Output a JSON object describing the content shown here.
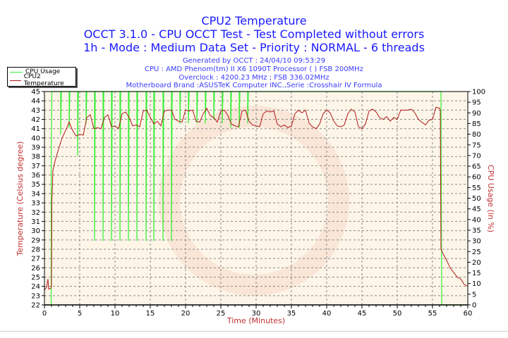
{
  "chart_data": {
    "type": "line",
    "title": "CPU2 Temperature",
    "subtitles": [
      "OCCT 3.1.0 - CPU OCCT Test - Test Completed without errors",
      "1h - Mode : Medium Data Set - Priority : NORMAL - 6 threads"
    ],
    "info_lines": [
      "Generated by OCCT : 24/04/10 09:53:29",
      "CPU : AMD Phenom(tm) II X6 1090T Processor  (  ) FSB 200MHz",
      "Overclock : 4200.23 MHz ; FSB 336.02MHz",
      "Motherboard Brand :ASUSTeK Computer INC.,Serie :Crosshair IV Formula"
    ],
    "xlabel": "Time (Minutes)",
    "ylabel": "Temperature (Celsius degree)",
    "y2label": "CPU Usage (in %)",
    "xlim": [
      0,
      60
    ],
    "ylim": [
      22,
      45
    ],
    "y2lim": [
      0,
      100
    ],
    "xticks": [
      0,
      5,
      10,
      15,
      20,
      25,
      30,
      35,
      40,
      45,
      50,
      55,
      60
    ],
    "yticks": [
      22,
      23,
      24,
      25,
      26,
      27,
      28,
      29,
      30,
      31,
      32,
      33,
      34,
      35,
      36,
      37,
      38,
      39,
      40,
      41,
      42,
      43,
      44,
      45
    ],
    "y2ticks": [
      0,
      5,
      10,
      15,
      20,
      25,
      30,
      35,
      40,
      45,
      50,
      55,
      60,
      65,
      70,
      75,
      80,
      85,
      90,
      95,
      100
    ],
    "grid": true,
    "legend_position": "top-left",
    "colors": {
      "usage": "#33ee33",
      "temperature": "#b01818",
      "title": "#1a1aff",
      "axis_label": "#c03030",
      "plot_bg": "#fdf6e8"
    },
    "series": [
      {
        "name": "CPU Usage",
        "axis": "right",
        "points": [
          [
            0,
            0
          ],
          [
            0.95,
            0
          ],
          [
            0.97,
            70
          ],
          [
            1.05,
            100
          ],
          [
            2.3,
            100
          ],
          [
            2.3,
            80
          ],
          [
            2.4,
            100
          ],
          [
            3.5,
            100
          ],
          [
            3.5,
            83
          ],
          [
            3.6,
            100
          ],
          [
            4.7,
            100
          ],
          [
            4.7,
            70
          ],
          [
            4.8,
            100
          ],
          [
            5.9,
            100
          ],
          [
            5.9,
            85
          ],
          [
            6.0,
            100
          ],
          [
            7.1,
            100
          ],
          [
            7.1,
            30
          ],
          [
            7.2,
            100
          ],
          [
            8.3,
            100
          ],
          [
            8.3,
            30
          ],
          [
            8.4,
            100
          ],
          [
            9.5,
            100
          ],
          [
            9.5,
            30
          ],
          [
            9.6,
            100
          ],
          [
            10.7,
            100
          ],
          [
            10.7,
            30
          ],
          [
            10.8,
            100
          ],
          [
            11.9,
            100
          ],
          [
            11.9,
            30
          ],
          [
            12.0,
            100
          ],
          [
            13.1,
            100
          ],
          [
            13.1,
            30
          ],
          [
            13.2,
            100
          ],
          [
            14.4,
            100
          ],
          [
            14.4,
            30
          ],
          [
            14.5,
            100
          ],
          [
            15.5,
            100
          ],
          [
            15.5,
            30
          ],
          [
            15.6,
            100
          ],
          [
            16.8,
            100
          ],
          [
            16.8,
            30
          ],
          [
            16.9,
            100
          ],
          [
            18.0,
            100
          ],
          [
            18.0,
            30
          ],
          [
            18.1,
            100
          ],
          [
            19.2,
            100
          ],
          [
            19.2,
            85
          ],
          [
            19.3,
            100
          ],
          [
            20.4,
            100
          ],
          [
            20.4,
            85
          ],
          [
            20.5,
            100
          ],
          [
            21.6,
            100
          ],
          [
            21.6,
            85
          ],
          [
            21.7,
            100
          ],
          [
            22.8,
            100
          ],
          [
            22.8,
            85
          ],
          [
            22.9,
            100
          ],
          [
            24.0,
            100
          ],
          [
            24.0,
            87
          ],
          [
            24.1,
            100
          ],
          [
            25.2,
            100
          ],
          [
            25.2,
            85
          ],
          [
            25.3,
            100
          ],
          [
            26.4,
            100
          ],
          [
            26.4,
            83
          ],
          [
            26.5,
            100
          ],
          [
            27.6,
            100
          ],
          [
            27.6,
            83
          ],
          [
            27.7,
            100
          ],
          [
            28.8,
            100
          ],
          [
            28.8,
            85
          ],
          [
            28.9,
            100
          ],
          [
            56.2,
            100
          ],
          [
            56.3,
            0
          ],
          [
            60,
            0
          ]
        ]
      },
      {
        "name": "CPU2 Temperature",
        "axis": "left",
        "points": [
          [
            0,
            23.6
          ],
          [
            0.3,
            23.9
          ],
          [
            0.5,
            24.8
          ],
          [
            0.6,
            23.7
          ],
          [
            0.9,
            23.8
          ],
          [
            1.0,
            24
          ],
          [
            1.05,
            33
          ],
          [
            1.2,
            36.5
          ],
          [
            1.5,
            37.5
          ],
          [
            2,
            38.8
          ],
          [
            2.5,
            40
          ],
          [
            3,
            40.8
          ],
          [
            3.5,
            41.7
          ],
          [
            4,
            40.8
          ],
          [
            4.5,
            40.2
          ],
          [
            5,
            40.4
          ],
          [
            5.5,
            40.3
          ],
          [
            6,
            42.2
          ],
          [
            6.5,
            42.5
          ],
          [
            7,
            41
          ],
          [
            7.5,
            41.1
          ],
          [
            8,
            41
          ],
          [
            8.5,
            42.2
          ],
          [
            9,
            42.5
          ],
          [
            9.5,
            41.2
          ],
          [
            10,
            41.3
          ],
          [
            10.5,
            41
          ],
          [
            11,
            42.6
          ],
          [
            11.5,
            42.8
          ],
          [
            12,
            42.2
          ],
          [
            12.5,
            41.3
          ],
          [
            13,
            41.4
          ],
          [
            13.5,
            41.2
          ],
          [
            14,
            42.9
          ],
          [
            14.5,
            43
          ],
          [
            15,
            42.2
          ],
          [
            15.5,
            41.5
          ],
          [
            16,
            41.8
          ],
          [
            16.5,
            41.3
          ],
          [
            17,
            42.9
          ],
          [
            17.5,
            43
          ],
          [
            18,
            43
          ],
          [
            18.5,
            42
          ],
          [
            19,
            41.8
          ],
          [
            19.5,
            41.7
          ],
          [
            20,
            43
          ],
          [
            20.5,
            42.9
          ],
          [
            21,
            43
          ],
          [
            21.5,
            41.8
          ],
          [
            22,
            41.7
          ],
          [
            22.5,
            42.6
          ],
          [
            23,
            43.2
          ],
          [
            23.5,
            42.4
          ],
          [
            24,
            42.2
          ],
          [
            24.5,
            41.7
          ],
          [
            25,
            42.9
          ],
          [
            25.5,
            43
          ],
          [
            26,
            42.4
          ],
          [
            26.5,
            41.5
          ],
          [
            27,
            41.3
          ],
          [
            27.5,
            41.2
          ],
          [
            28,
            42.9
          ],
          [
            28.5,
            43
          ],
          [
            29,
            41.8
          ],
          [
            29.5,
            41.4
          ],
          [
            30,
            41.3
          ],
          [
            30.5,
            41.2
          ],
          [
            31,
            42.6
          ],
          [
            31.5,
            42.9
          ],
          [
            32,
            42.8
          ],
          [
            32.5,
            42.9
          ],
          [
            33,
            41.5
          ],
          [
            33.5,
            41.2
          ],
          [
            34,
            41.4
          ],
          [
            34.5,
            41.1
          ],
          [
            35,
            41.3
          ],
          [
            35.5,
            42.6
          ],
          [
            36,
            43
          ],
          [
            36.5,
            42.7
          ],
          [
            37,
            43
          ],
          [
            37.5,
            41.6
          ],
          [
            38,
            41.2
          ],
          [
            38.5,
            41
          ],
          [
            39,
            41.5
          ],
          [
            39.5,
            42.6
          ],
          [
            40,
            43
          ],
          [
            40.5,
            42.7
          ],
          [
            41,
            41.8
          ],
          [
            41.5,
            41.3
          ],
          [
            42,
            41.2
          ],
          [
            42.5,
            41.4
          ],
          [
            43,
            42.6
          ],
          [
            43.5,
            43.1
          ],
          [
            44,
            42.8
          ],
          [
            44.5,
            41.2
          ],
          [
            45,
            41
          ],
          [
            45.5,
            41.5
          ],
          [
            46,
            42.9
          ],
          [
            46.5,
            43.1
          ],
          [
            47,
            42.8
          ],
          [
            47.5,
            42.2
          ],
          [
            48,
            42
          ],
          [
            48.5,
            42.3
          ],
          [
            49,
            41.8
          ],
          [
            49.5,
            42.2
          ],
          [
            50,
            42
          ],
          [
            50.5,
            43
          ],
          [
            51,
            43
          ],
          [
            51.5,
            43
          ],
          [
            52,
            43.1
          ],
          [
            52.5,
            42.7
          ],
          [
            53,
            42
          ],
          [
            53.5,
            41.7
          ],
          [
            54,
            41.4
          ],
          [
            54.5,
            41.9
          ],
          [
            55,
            42
          ],
          [
            55.5,
            43.3
          ],
          [
            56,
            43.2
          ],
          [
            56.1,
            43
          ],
          [
            56.2,
            28
          ],
          [
            56.5,
            27.5
          ],
          [
            57,
            26.8
          ],
          [
            57.5,
            26
          ],
          [
            58,
            25.5
          ],
          [
            58.5,
            25
          ],
          [
            59,
            24.8
          ],
          [
            59.5,
            24.2
          ],
          [
            60,
            24
          ]
        ]
      }
    ]
  }
}
